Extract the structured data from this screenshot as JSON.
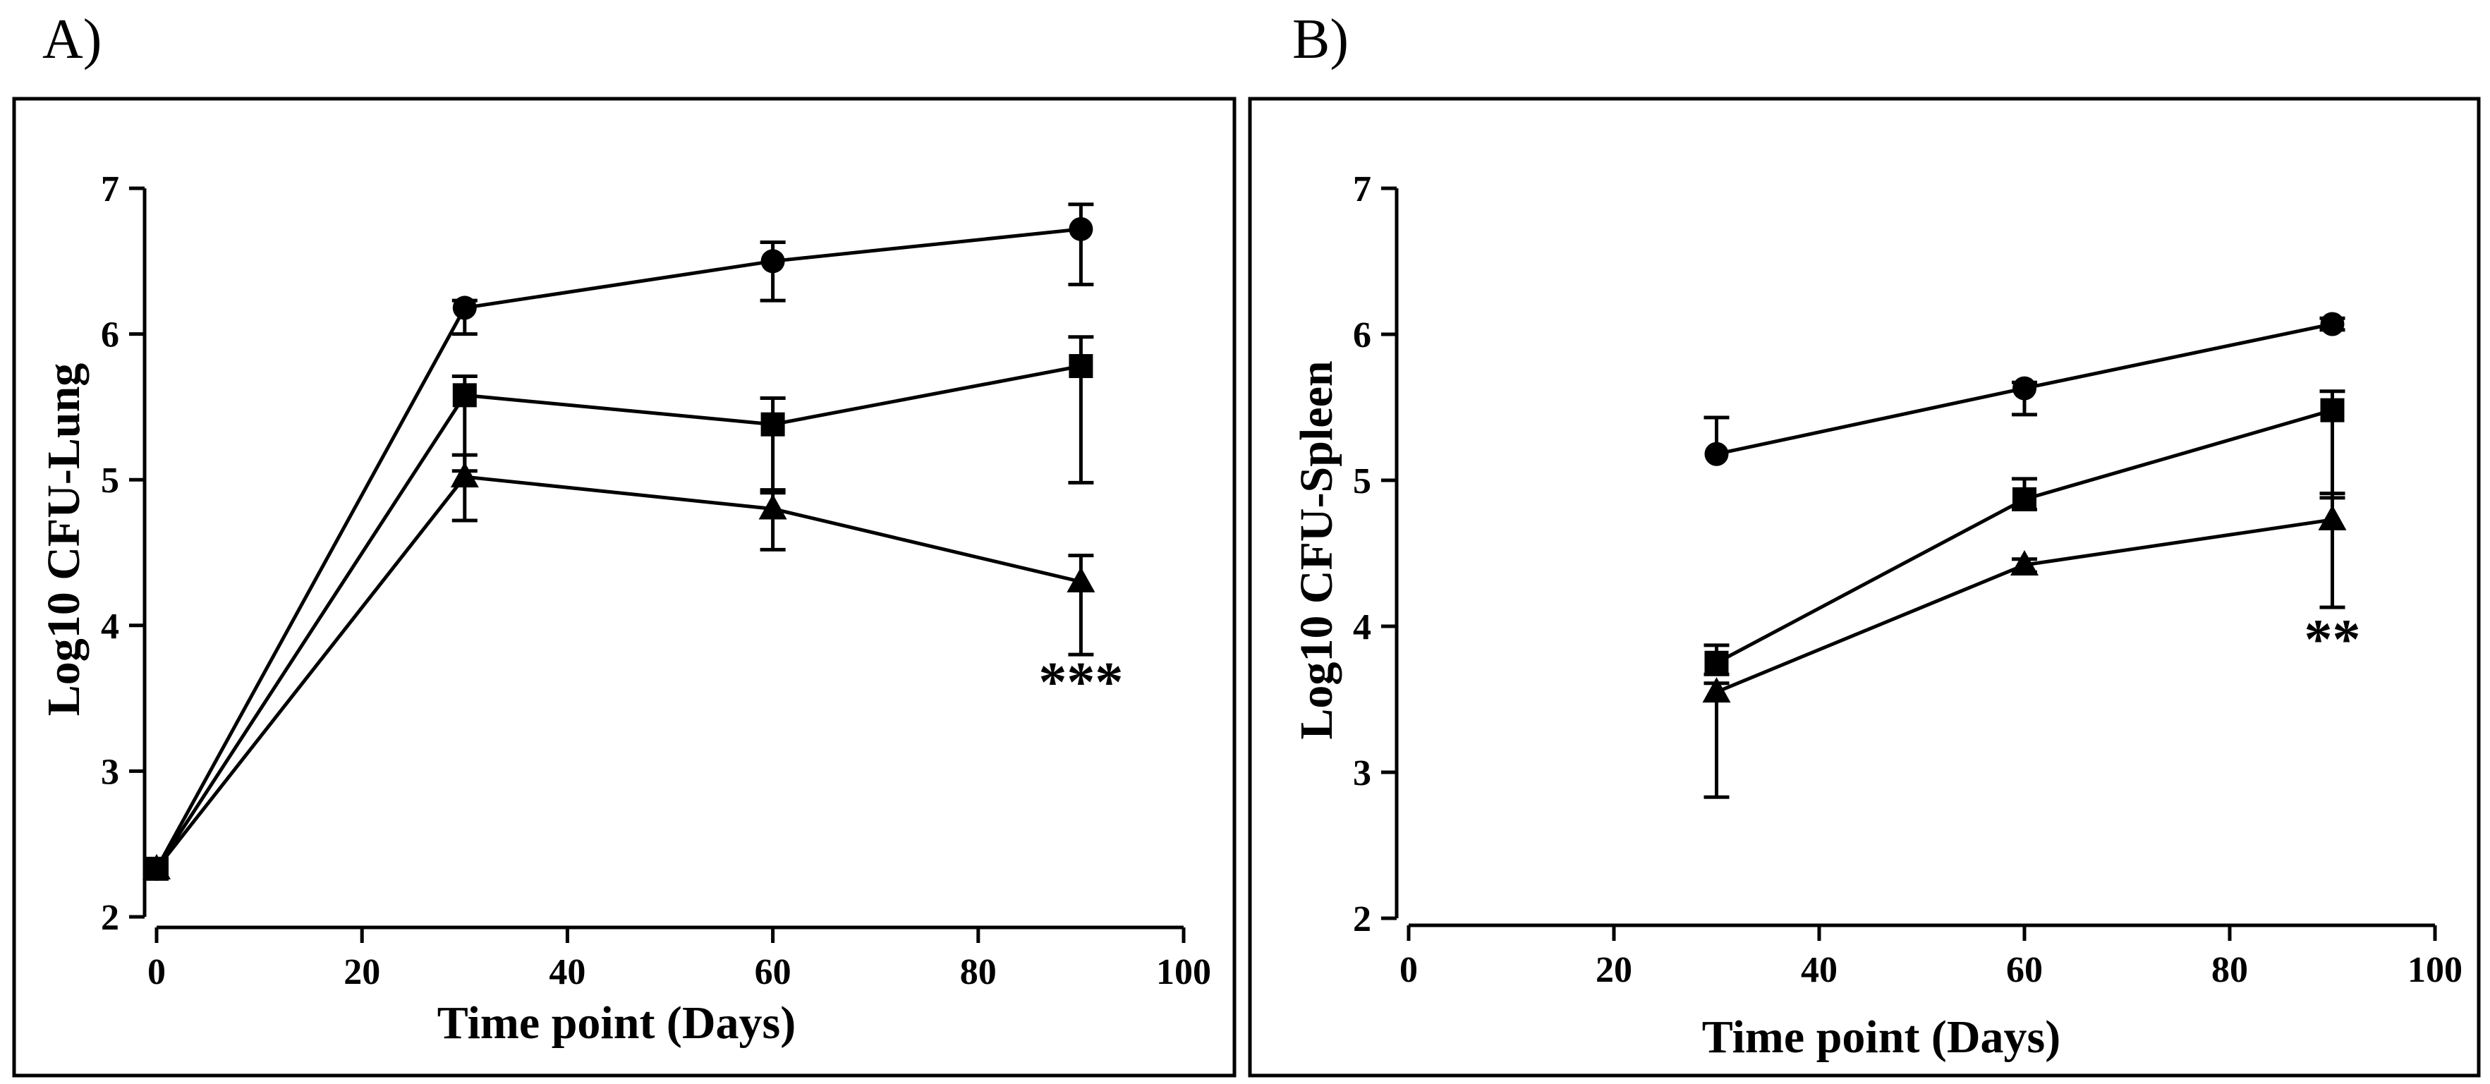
{
  "chart_data": [
    {
      "type": "line",
      "panel_label": "A)",
      "xlabel": "Time point (Days)",
      "ylabel": "Log10 CFU-Lung",
      "xlim": [
        0,
        100
      ],
      "ylim": [
        2,
        7
      ],
      "xticks": [
        "0",
        "20",
        "40",
        "60",
        "80",
        "100"
      ],
      "yticks": [
        "2",
        "3",
        "4",
        "5",
        "6",
        "7"
      ],
      "grid": false,
      "legend": "none",
      "series": [
        {
          "name": "circle",
          "marker": "circle",
          "x": [
            0,
            30,
            60,
            90
          ],
          "y": [
            2.33,
            6.18,
            6.5,
            6.72
          ],
          "err_low": [
            0,
            0.18,
            0.27,
            0.38
          ],
          "err_high": [
            0,
            0.05,
            0.13,
            0.17
          ]
        },
        {
          "name": "square",
          "marker": "square",
          "x": [
            0,
            30,
            60,
            90
          ],
          "y": [
            2.33,
            5.58,
            5.38,
            5.78
          ],
          "err_low": [
            0,
            0.52,
            0.47,
            0.8
          ],
          "err_high": [
            0,
            0.13,
            0.18,
            0.2
          ]
        },
        {
          "name": "triangle",
          "marker": "triangle",
          "x": [
            0,
            30,
            60,
            90
          ],
          "y": [
            2.33,
            5.02,
            4.8,
            4.3
          ],
          "err_low": [
            0,
            0.3,
            0.28,
            0.5
          ],
          "err_high": [
            0,
            0.15,
            0.13,
            0.18
          ]
        }
      ],
      "annotations": [
        {
          "text": "***",
          "x": 90,
          "y": 3.48
        }
      ]
    },
    {
      "type": "line",
      "panel_label": "B)",
      "xlabel": "Time point (Days)",
      "ylabel": "Log10 CFU-Spleen",
      "xlim": [
        0,
        100
      ],
      "ylim": [
        2,
        7
      ],
      "xticks": [
        "0",
        "20",
        "40",
        "60",
        "80",
        "100"
      ],
      "yticks": [
        "2",
        "3",
        "4",
        "5",
        "6",
        "7"
      ],
      "grid": false,
      "legend": "none",
      "series": [
        {
          "name": "circle",
          "marker": "circle",
          "x": [
            30,
            60,
            90
          ],
          "y": [
            5.18,
            5.63,
            6.07
          ],
          "err_low": [
            0,
            0.18,
            0.04
          ],
          "err_high": [
            0.25,
            0.04,
            0.04
          ]
        },
        {
          "name": "square",
          "marker": "square",
          "x": [
            30,
            60,
            90
          ],
          "y": [
            3.75,
            4.87,
            5.48
          ],
          "err_low": [
            0.08,
            0.07,
            0.6
          ],
          "err_high": [
            0.12,
            0.14,
            0.13
          ]
        },
        {
          "name": "triangle",
          "marker": "triangle",
          "x": [
            30,
            60,
            90
          ],
          "y": [
            3.55,
            4.42,
            4.73
          ],
          "err_low": [
            0.72,
            0.05,
            0.6
          ],
          "err_high": [
            0.06,
            0.04,
            0.18
          ]
        }
      ],
      "annotations": [
        {
          "text": "**",
          "x": 90,
          "y": 3.78
        }
      ]
    }
  ]
}
